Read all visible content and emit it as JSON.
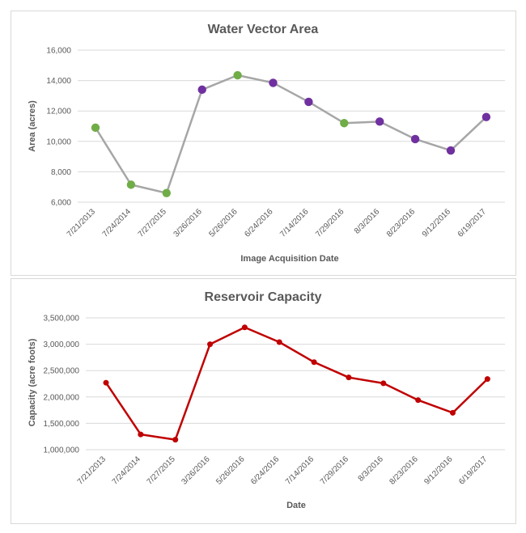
{
  "chart_data": [
    {
      "type": "line",
      "title": "Water Vector Area",
      "xlabel": "Image Acquisition Date",
      "ylabel": "Area (acres)",
      "categories": [
        "7/21/2013",
        "7/24/2014",
        "7/27/2015",
        "3/26/2016",
        "5/26/2016",
        "6/24/2016",
        "7/14/2016",
        "7/29/2016",
        "8/3/2016",
        "8/23/2016",
        "9/12/2016",
        "6/19/2017"
      ],
      "series": [
        {
          "values": [
            10900,
            7150,
            6600,
            13400,
            14350,
            13850,
            12600,
            11200,
            11300,
            10150,
            9400,
            11600
          ],
          "line_color": "#a6a6a6",
          "point_colors": [
            "#70ad47",
            "#70ad47",
            "#70ad47",
            "#7030a0",
            "#70ad47",
            "#7030a0",
            "#7030a0",
            "#70ad47",
            "#7030a0",
            "#7030a0",
            "#7030a0",
            "#7030a0"
          ]
        }
      ],
      "ylim": [
        6000,
        16000
      ],
      "yticks": [
        6000,
        8000,
        10000,
        12000,
        14000,
        16000
      ],
      "ytick_labels": [
        "6,000",
        "8,000",
        "10,000",
        "12,000",
        "14,000",
        "16,000"
      ],
      "grid": true
    },
    {
      "type": "line",
      "title": "Reservoir Capacity",
      "xlabel": "Date",
      "ylabel": "Capacity (acre foots)",
      "categories": [
        "7/21/2013",
        "7/24/2014",
        "7/27/2015",
        "3/26/2016",
        "5/26/2016",
        "6/24/2016",
        "7/14/2016",
        "7/29/2016",
        "8/3/2016",
        "8/23/2016",
        "9/12/2016",
        "6/19/2017"
      ],
      "series": [
        {
          "values": [
            2270000,
            1290000,
            1190000,
            3000000,
            3320000,
            3040000,
            2660000,
            2370000,
            2260000,
            1940000,
            1700000,
            2340000
          ],
          "line_color": "#c00000",
          "point_colors": [
            "#c00000",
            "#c00000",
            "#c00000",
            "#c00000",
            "#c00000",
            "#c00000",
            "#c00000",
            "#c00000",
            "#c00000",
            "#c00000",
            "#c00000",
            "#c00000"
          ]
        }
      ],
      "ylim": [
        1000000,
        3500000
      ],
      "yticks": [
        1000000,
        1500000,
        2000000,
        2500000,
        3000000,
        3500000
      ],
      "ytick_labels": [
        "1,000,000",
        "1,500,000",
        "2,000,000",
        "2,500,000",
        "3,000,000",
        "3,500,000"
      ],
      "grid": true
    }
  ]
}
